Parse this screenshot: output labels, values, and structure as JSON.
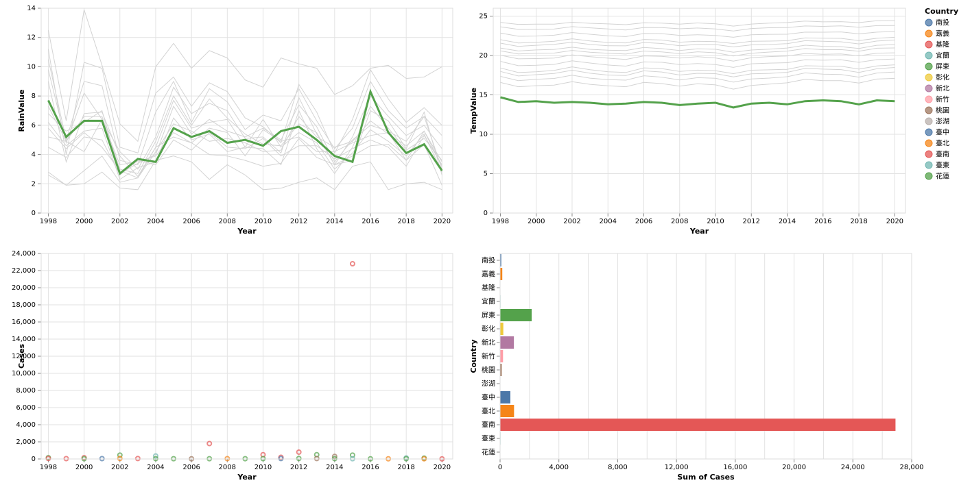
{
  "chart_data": [
    {
      "type": "line",
      "xlabel": "Year",
      "ylabel": "RainValue",
      "ylim": [
        0,
        14
      ],
      "x_ticks": [
        1998,
        2000,
        2002,
        2004,
        2006,
        2008,
        2010,
        2012,
        2014,
        2016,
        2018,
        2020
      ],
      "y_ticks": [
        0,
        2,
        4,
        6,
        8,
        10,
        12,
        14
      ],
      "years": [
        1998,
        1999,
        2000,
        2001,
        2002,
        2003,
        2004,
        2005,
        2006,
        2007,
        2008,
        2009,
        2010,
        2011,
        2012,
        2013,
        2014,
        2015,
        2016,
        2017,
        2018,
        2019,
        2020
      ],
      "highlight": {
        "color": "#54a24b",
        "values": [
          7.7,
          5.2,
          6.3,
          6.3,
          2.7,
          3.7,
          3.5,
          5.8,
          5.2,
          5.6,
          4.8,
          5.0,
          4.6,
          5.6,
          5.9,
          5.0,
          3.9,
          3.5,
          8.3,
          5.5,
          4.1,
          4.7,
          2.9
        ]
      },
      "background_color": "#d3d3d3",
      "background": [
        [
          12.5,
          6.3,
          13.9,
          10.1,
          6.1,
          4.9,
          10.0,
          11.6,
          9.9,
          11.1,
          10.6,
          9.1,
          8.6,
          10.6,
          10.2,
          9.9,
          8.1,
          8.7,
          9.9,
          10.1,
          9.2,
          9.3,
          10.0
        ],
        [
          11.2,
          4.0,
          10.3,
          9.9,
          4.5,
          4.1,
          8.2,
          9.3,
          7.3,
          8.9,
          8.3,
          6.5,
          5.9,
          4.8,
          8.8,
          6.9,
          4.1,
          6.4,
          9.8,
          7.8,
          6.2,
          7.2,
          6.0
        ],
        [
          10.5,
          5.0,
          9.0,
          8.7,
          3.6,
          3.3,
          6.9,
          9.0,
          6.2,
          8.5,
          7.6,
          5.7,
          6.7,
          6.3,
          8.5,
          6.3,
          4.4,
          5.8,
          9.0,
          7.0,
          5.8,
          6.6,
          5.3
        ],
        [
          9.8,
          4.8,
          8.2,
          6.4,
          4.2,
          3.0,
          5.2,
          8.6,
          6.8,
          7.5,
          7.0,
          5.1,
          5.2,
          4.1,
          7.9,
          5.4,
          3.3,
          5.2,
          8.0,
          6.6,
          5.3,
          6.0,
          4.4
        ],
        [
          9.0,
          3.5,
          6.8,
          6.9,
          3.9,
          2.5,
          4.5,
          7.7,
          5.8,
          6.2,
          6.4,
          4.5,
          4.4,
          3.3,
          7.0,
          4.4,
          2.7,
          4.5,
          7.3,
          5.8,
          4.3,
          5.1,
          3.6
        ],
        [
          7.3,
          4.9,
          6.6,
          6.6,
          3.0,
          2.7,
          4.9,
          8.0,
          6.0,
          7.8,
          6.5,
          5.4,
          4.7,
          4.6,
          6.1,
          5.5,
          3.3,
          3.6,
          7.0,
          6.3,
          4.4,
          6.9,
          2.6
        ],
        [
          6.8,
          5.6,
          6.2,
          7.0,
          2.7,
          3.4,
          4.0,
          7.3,
          5.4,
          6.4,
          5.6,
          5.2,
          5.8,
          5.0,
          7.4,
          5.9,
          3.5,
          5.0,
          6.0,
          5.6,
          4.9,
          6.6,
          3.0
        ],
        [
          6.2,
          4.6,
          5.6,
          5.8,
          2.3,
          3.1,
          3.5,
          6.5,
          5.0,
          5.4,
          4.2,
          4.5,
          6.4,
          4.5,
          5.5,
          4.8,
          3.0,
          4.1,
          5.7,
          4.9,
          3.9,
          5.4,
          2.8
        ],
        [
          5.8,
          4.4,
          5.5,
          4.5,
          2.9,
          2.4,
          4.2,
          6.1,
          5.6,
          4.9,
          5.1,
          4.8,
          4.2,
          4.3,
          6.6,
          5.2,
          4.5,
          4.9,
          6.3,
          5.4,
          4.6,
          5.6,
          3.5
        ],
        [
          5.2,
          4.9,
          4.2,
          6.4,
          3.3,
          3.5,
          3.9,
          5.5,
          4.8,
          5.8,
          5.5,
          3.9,
          5.7,
          4.9,
          5.2,
          4.2,
          4.2,
          4.8,
          5.3,
          5.5,
          3.6,
          5.6,
          3.2
        ],
        [
          4.5,
          3.8,
          5.2,
          5.0,
          2.6,
          3.6,
          3.3,
          5.0,
          4.3,
          5.5,
          4.5,
          4.4,
          5.1,
          3.9,
          4.6,
          4.6,
          3.7,
          4.4,
          5.0,
          4.5,
          3.2,
          5.3,
          3.3
        ],
        [
          2.8,
          1.9,
          2.9,
          3.9,
          2.1,
          2.4,
          4.5,
          5.2,
          4.8,
          4.0,
          3.9,
          3.6,
          3.2,
          3.4,
          5.1,
          3.8,
          3.3,
          3.9,
          4.6,
          4.7,
          3.6,
          4.7,
          1.9
        ],
        [
          2.6,
          1.9,
          2.0,
          2.8,
          1.7,
          1.6,
          3.6,
          3.9,
          3.5,
          2.3,
          3.3,
          2.6,
          1.6,
          1.7,
          2.1,
          2.4,
          1.6,
          3.2,
          3.5,
          1.6,
          2.0,
          2.1,
          1.6
        ]
      ]
    },
    {
      "type": "line",
      "xlabel": "Year",
      "ylabel": "TempValue",
      "ylim": [
        0,
        26
      ],
      "x_ticks": [
        1998,
        2000,
        2002,
        2004,
        2006,
        2008,
        2010,
        2012,
        2014,
        2016,
        2018,
        2020
      ],
      "y_ticks": [
        0,
        5,
        10,
        15,
        20,
        25
      ],
      "years": [
        1998,
        1999,
        2000,
        2001,
        2002,
        2003,
        2004,
        2005,
        2006,
        2007,
        2008,
        2009,
        2010,
        2011,
        2012,
        2013,
        2014,
        2015,
        2016,
        2017,
        2018,
        2019,
        2020
      ],
      "highlight": {
        "color": "#54a24b",
        "values": [
          14.7,
          14.1,
          14.2,
          14.0,
          14.1,
          14.0,
          13.8,
          13.9,
          14.1,
          14.0,
          13.7,
          13.9,
          14.0,
          13.4,
          13.9,
          14.0,
          13.8,
          14.2,
          14.3,
          14.2,
          13.8,
          14.3,
          14.2
        ]
      },
      "background_color": "#d3d3d3",
      "background_levels": [
        24.2,
        23.6,
        22.8,
        22.0,
        21.6,
        21.0,
        20.6,
        20.0,
        19.2,
        18.4,
        18.0,
        17.4,
        16.6
      ],
      "background_wiggle": [
        0.0,
        -0.5,
        -0.4,
        -0.3,
        0.1,
        -0.2,
        -0.4,
        -0.5,
        0.0,
        -0.1,
        -0.4,
        -0.2,
        -0.3,
        -0.7,
        -0.3,
        -0.2,
        -0.1,
        0.3,
        0.2,
        0.2,
        -0.1,
        0.3,
        0.4
      ],
      "legend": {
        "title": "Country",
        "items": [
          {
            "label": "南投",
            "color": "#4c78a8"
          },
          {
            "label": "嘉義",
            "color": "#f58518"
          },
          {
            "label": "基隆",
            "color": "#e45756"
          },
          {
            "label": "宜蘭",
            "color": "#72b7b2"
          },
          {
            "label": "屏東",
            "color": "#54a24b"
          },
          {
            "label": "彰化",
            "color": "#eeca3b"
          },
          {
            "label": "新北",
            "color": "#b279a2"
          },
          {
            "label": "新竹",
            "color": "#ff9da6"
          },
          {
            "label": "桃園",
            "color": "#9d755d"
          },
          {
            "label": "澎湖",
            "color": "#bab0ac"
          },
          {
            "label": "臺中",
            "color": "#4c78a8"
          },
          {
            "label": "臺北",
            "color": "#f58518"
          },
          {
            "label": "臺南",
            "color": "#e45756"
          },
          {
            "label": "臺東",
            "color": "#72b7b2"
          },
          {
            "label": "花蓮",
            "color": "#54a24b"
          }
        ]
      }
    },
    {
      "type": "scatter",
      "xlabel": "Year",
      "ylabel": "Cases",
      "ylim": [
        0,
        24000
      ],
      "x_ticks": [
        1998,
        2000,
        2002,
        2004,
        2006,
        2008,
        2010,
        2012,
        2014,
        2016,
        2018,
        2020
      ],
      "y_ticks": [
        0,
        2000,
        4000,
        6000,
        8000,
        10000,
        12000,
        14000,
        16000,
        18000,
        20000,
        22000,
        24000
      ],
      "points": [
        {
          "year": 2015,
          "cases": 22800,
          "color": "#e45756"
        },
        {
          "year": 2007,
          "cases": 1800,
          "color": "#e45756"
        },
        {
          "year": 2012,
          "cases": 800,
          "color": "#e45756"
        },
        {
          "year": 2010,
          "cases": 500,
          "color": "#e45756"
        },
        {
          "year": 2013,
          "cases": 500,
          "color": "#54a24b"
        },
        {
          "year": 2015,
          "cases": 450,
          "color": "#54a24b"
        },
        {
          "year": 2002,
          "cases": 450,
          "color": "#54a24b"
        },
        {
          "year": 2004,
          "cases": 350,
          "color": "#72b7b2"
        },
        {
          "year": 2014,
          "cases": 300,
          "color": "#9d755d"
        },
        {
          "year": 2011,
          "cases": 200,
          "color": "#e45756"
        },
        {
          "year": 1998,
          "cases": 150,
          "color": "#54a24b"
        },
        {
          "year": 2000,
          "cases": 150,
          "color": "#e45756"
        },
        {
          "year": 2018,
          "cases": 120,
          "color": "#72b7b2"
        },
        {
          "year": 2019,
          "cases": 100,
          "color": "#54a24b"
        },
        {
          "year": 1998,
          "cases": 60,
          "color": "#e45756"
        },
        {
          "year": 1999,
          "cases": 40,
          "color": "#e45756"
        },
        {
          "year": 2000,
          "cases": 30,
          "color": "#54a24b"
        },
        {
          "year": 2001,
          "cases": 40,
          "color": "#4c78a8"
        },
        {
          "year": 2002,
          "cases": 60,
          "color": "#f58518"
        },
        {
          "year": 2003,
          "cases": 50,
          "color": "#e45756"
        },
        {
          "year": 2004,
          "cases": 40,
          "color": "#54a24b"
        },
        {
          "year": 2005,
          "cases": 30,
          "color": "#54a24b"
        },
        {
          "year": 2006,
          "cases": 20,
          "color": "#9d755d"
        },
        {
          "year": 2007,
          "cases": 30,
          "color": "#54a24b"
        },
        {
          "year": 2008,
          "cases": 40,
          "color": "#f58518"
        },
        {
          "year": 2009,
          "cases": 30,
          "color": "#54a24b"
        },
        {
          "year": 2010,
          "cases": 40,
          "color": "#54a24b"
        },
        {
          "year": 2011,
          "cases": 50,
          "color": "#4c78a8"
        },
        {
          "year": 2012,
          "cases": 60,
          "color": "#54a24b"
        },
        {
          "year": 2013,
          "cases": 50,
          "color": "#9d755d"
        },
        {
          "year": 2014,
          "cases": 40,
          "color": "#54a24b"
        },
        {
          "year": 2015,
          "cases": 30,
          "color": "#72b7b2"
        },
        {
          "year": 2016,
          "cases": 20,
          "color": "#54a24b"
        },
        {
          "year": 2017,
          "cases": 20,
          "color": "#f58518"
        },
        {
          "year": 2018,
          "cases": 30,
          "color": "#54a24b"
        },
        {
          "year": 2019,
          "cases": 20,
          "color": "#f58518"
        },
        {
          "year": 2020,
          "cases": 10,
          "color": "#e45756"
        }
      ]
    },
    {
      "type": "bar",
      "orientation": "horizontal",
      "xlabel": "Sum of Cases",
      "ylabel": "Country",
      "xlim": [
        0,
        28000
      ],
      "x_ticks": [
        0,
        4000,
        8000,
        12000,
        16000,
        20000,
        24000,
        28000
      ],
      "categories": [
        "南投",
        "嘉義",
        "基隆",
        "宜蘭",
        "屏東",
        "彰化",
        "新北",
        "新竹",
        "桃園",
        "澎湖",
        "臺中",
        "臺北",
        "臺南",
        "臺東",
        "花蓮"
      ],
      "values": [
        80,
        150,
        20,
        30,
        2150,
        220,
        940,
        200,
        110,
        10,
        700,
        950,
        26900,
        30,
        20
      ],
      "colors": [
        "#4c78a8",
        "#f58518",
        "#e45756",
        "#72b7b2",
        "#54a24b",
        "#eeca3b",
        "#b279a2",
        "#ff9da6",
        "#9d755d",
        "#bab0ac",
        "#4c78a8",
        "#f58518",
        "#e45756",
        "#72b7b2",
        "#54a24b"
      ]
    }
  ]
}
